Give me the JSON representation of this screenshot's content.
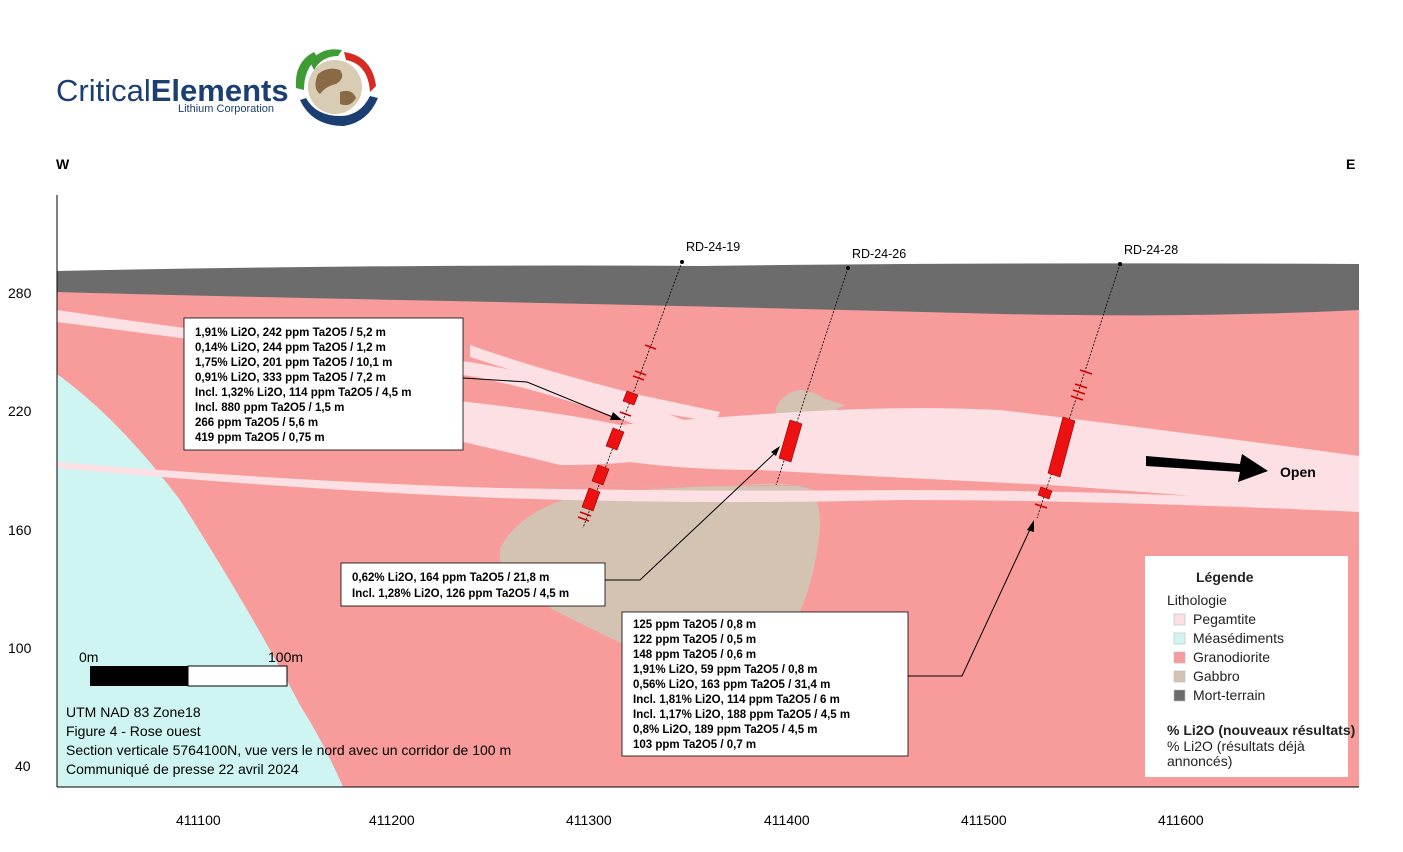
{
  "logo": {
    "name_light": "Critical",
    "name_bold": "Elements",
    "subtitle": "Lithium Corporation"
  },
  "compass": {
    "west": "W",
    "east": "E"
  },
  "axes": {
    "y_ticks": [
      "280",
      "220",
      "160",
      "100",
      "40"
    ],
    "x_ticks": [
      "411100",
      "411200",
      "411300",
      "411400",
      "411500",
      "411600"
    ]
  },
  "drillholes": [
    "RD-24-19",
    "RD-24-26",
    "RD-24-28"
  ],
  "open_label": "Open",
  "scale_bar": {
    "start": "0m",
    "end": "100m"
  },
  "boxes": {
    "rd19": [
      "1,91% Li2O, 242 ppm Ta2O5 / 5,2 m",
      "0,14% Li2O, 244 ppm Ta2O5 / 1,2 m",
      "1,75% Li2O, 201 ppm Ta2O5 / 10,1 m",
      "0,91% Li2O, 333 ppm Ta2O5 / 7,2 m",
      "Incl. 1,32% Li2O, 114 ppm Ta2O5 / 4,5 m",
      "Incl. 880 ppm Ta2O5 / 1,5 m",
      "266 ppm Ta2O5 / 5,6 m",
      "419 ppm Ta2O5 / 0,75 m"
    ],
    "rd26": [
      "0,62% Li2O, 164 ppm Ta2O5 / 21,8 m",
      "Incl. 1,28% Li2O, 126 ppm Ta2O5 / 4,5 m"
    ],
    "rd28": [
      "125 ppm Ta2O5 / 0,8 m",
      "122 ppm Ta2O5 / 0,5 m",
      "148 ppm Ta2O5 / 0,6 m",
      "1,91% Li2O, 59 ppm Ta2O5 / 0,8 m",
      "0,56% Li2O, 163 ppm Ta2O5 / 31,4 m",
      "Incl. 1,81% Li2O, 114 ppm Ta2O5 / 6 m",
      "Incl. 1,17% Li2O, 188 ppm Ta2O5 / 4,5 m",
      "0,8% Li2O, 189 ppm Ta2O5 / 4,5 m",
      "103 ppm Ta2O5 / 0,7 m"
    ]
  },
  "info": [
    "UTM NAD 83 Zone18",
    "Figure 4 - Rose ouest",
    "Section verticale 5764100N, vue vers le nord avec un corridor de 100 m",
    "Communiqué de presse 22 avril 2024"
  ],
  "legend": {
    "title": "Légende",
    "subtitle": "Lithologie",
    "items": [
      {
        "label": "Pegamtite",
        "color": "#fde0e4"
      },
      {
        "label": "Méasédiments",
        "color": "#cff5f2"
      },
      {
        "label": "Granodiorite",
        "color": "#f89b9b"
      },
      {
        "label": "Gabbro",
        "color": "#d4c2b3"
      },
      {
        "label": "Mort-terrain",
        "color": "#6c6c6c"
      }
    ],
    "note_bold": "% Li2O (nouveaux résultats)",
    "note_grey_1": "% Li2O (résultats déjà",
    "note_grey_2": "annoncés)"
  },
  "colors": {
    "granodiorite": "#f89b9b",
    "pegmatite": "#fde0e4",
    "metasediments": "#cff5f2",
    "gabbro": "#d4c2b3",
    "overburden": "#6c6c6c",
    "intercept": "#ee1111",
    "logo_blue": "#1b3f73",
    "logo_green": "#3f9c35",
    "logo_red": "#d62a22"
  }
}
